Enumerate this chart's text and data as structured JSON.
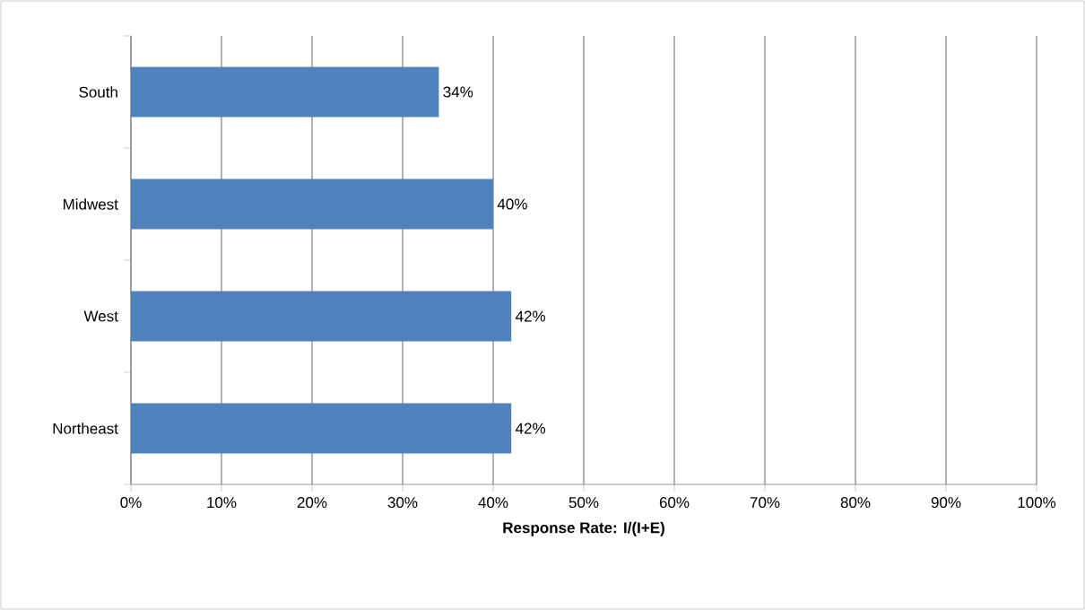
{
  "chart_data": {
    "type": "bar",
    "orientation": "horizontal",
    "xlabel": "Response Rate: I/(I+E)",
    "categories": [
      "South",
      "Midwest",
      "West",
      "Northeast"
    ],
    "values": [
      34,
      40,
      42,
      42
    ],
    "value_labels": [
      "34%",
      "40%",
      "42%",
      "42%"
    ],
    "color": "#4f81bd",
    "grid": "x",
    "xlim": [
      0,
      100
    ],
    "xticks": [
      {
        "value": 0,
        "label": "0%"
      },
      {
        "value": 10,
        "label": "10%"
      },
      {
        "value": 20,
        "label": "20%"
      },
      {
        "value": 30,
        "label": "30%"
      },
      {
        "value": 40,
        "label": "40%"
      },
      {
        "value": 50,
        "label": "50%"
      },
      {
        "value": 60,
        "label": "60%"
      },
      {
        "value": 70,
        "label": "70%"
      },
      {
        "value": 80,
        "label": "80%"
      },
      {
        "value": 90,
        "label": "90%"
      },
      {
        "value": 100,
        "label": "100%"
      }
    ]
  }
}
